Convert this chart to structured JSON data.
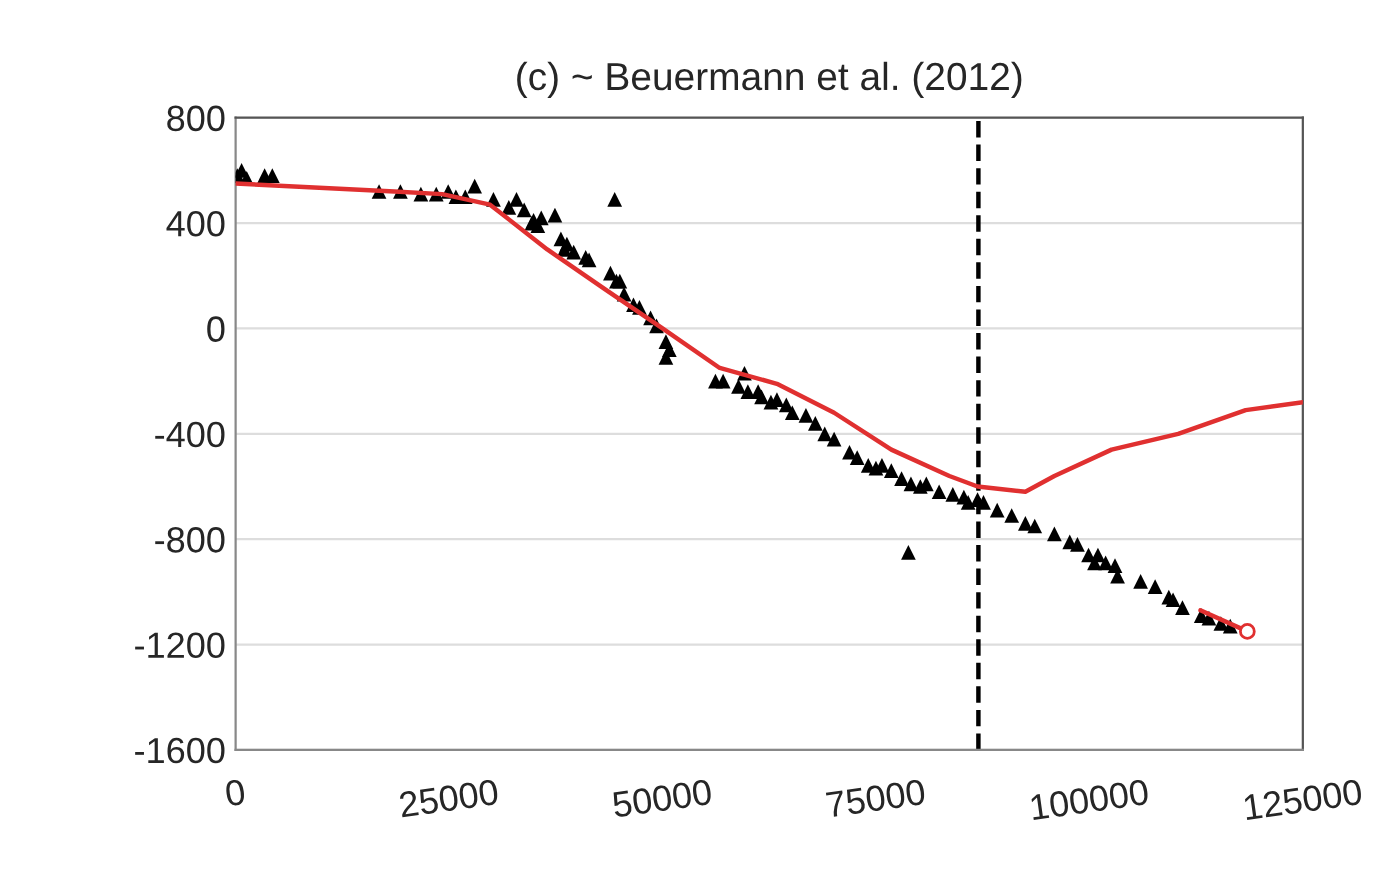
{
  "chart_data": {
    "type": "scatter",
    "title": "(c) ~ Beuermann et al. (2012)",
    "xlim": [
      0,
      125000
    ],
    "xticks": [
      0,
      25000,
      50000,
      75000,
      100000,
      125000
    ],
    "ylim": [
      -1600,
      800
    ],
    "yticks": [
      -1600,
      -1200,
      -800,
      -400,
      0,
      400,
      800
    ],
    "grid": "y",
    "legend": false,
    "series": [
      {
        "marker": "triangle",
        "color": "#000000",
        "x": [
          200,
          700,
          1300,
          3400,
          4300,
          16800,
          19300,
          21700,
          23500,
          24900,
          25800,
          26900,
          28000,
          30200,
          32000,
          32900,
          33800,
          34900,
          35400,
          35800,
          34700,
          37400,
          38100,
          38500,
          38800,
          39600,
          41000,
          41400,
          43900,
          44600,
          45500,
          45000,
          46600,
          47300,
          48600,
          49300,
          50400,
          50800,
          50400,
          44400,
          56200,
          57100,
          58900,
          59600,
          60000,
          61200,
          61600,
          62700,
          63400,
          64500,
          65200,
          66800,
          67900,
          69000,
          70100,
          71900,
          72800,
          74100,
          75000,
          75700,
          76800,
          78000,
          79100,
          80200,
          80900,
          82400,
          84000,
          85300,
          85800,
          86900,
          87600,
          89200,
          90900,
          92500,
          93600,
          95900,
          97700,
          98600,
          99900,
          100600,
          101000,
          101900,
          103000,
          103300,
          106000,
          107700,
          109300,
          109800,
          110900,
          113100,
          114000,
          115400,
          116500,
          78800
        ],
        "values": [
          580,
          600,
          570,
          580,
          580,
          520,
          520,
          510,
          510,
          520,
          500,
          500,
          540,
          490,
          460,
          490,
          450,
          410,
          390,
          420,
          400,
          430,
          340,
          300,
          320,
          290,
          270,
          260,
          210,
          180,
          130,
          180,
          90,
          80,
          40,
          10,
          -50,
          -80,
          -110,
          490,
          -200,
          -200,
          -220,
          -170,
          -240,
          -240,
          -260,
          -280,
          -270,
          -290,
          -320,
          -330,
          -360,
          -400,
          -420,
          -470,
          -490,
          -520,
          -530,
          -520,
          -540,
          -570,
          -590,
          -600,
          -590,
          -620,
          -630,
          -640,
          -660,
          -650,
          -660,
          -690,
          -710,
          -740,
          -750,
          -780,
          -810,
          -820,
          -860,
          -890,
          -860,
          -890,
          -900,
          -940,
          -960,
          -980,
          -1020,
          -1030,
          -1060,
          -1090,
          -1100,
          -1120,
          -1130,
          -850
        ]
      },
      {
        "type": "line",
        "color": "#e03030",
        "marker": "none",
        "x": [
          0,
          18600,
          24200,
          29800,
          36500,
          43200,
          50000,
          56700,
          63400,
          70100,
          76800,
          83600,
          86900,
          92500,
          95900,
          102600,
          110400,
          118300,
          125000
        ],
        "values": [
          550,
          520,
          510,
          470,
          300,
          150,
          0,
          -150,
          -210,
          -320,
          -460,
          -560,
          -600,
          -620,
          -560,
          -460,
          -400,
          -310,
          -280
        ]
      },
      {
        "type": "line",
        "color": "#e03030",
        "marker": "circle",
        "x": [
          113000,
          118500
        ],
        "values": [
          -1070,
          -1150
        ]
      }
    ],
    "ref_lines": [
      {
        "axis": "x",
        "value": 87000,
        "color": "#000000",
        "line_style": "dashed"
      }
    ]
  }
}
